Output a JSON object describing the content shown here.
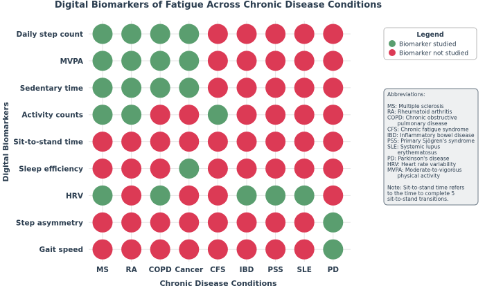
{
  "chart_data": {
    "type": "matrix",
    "title": "Digital Biomarkers of Fatigue Across Chronic Disease Conditions",
    "xlabel": "Chronic Disease Conditions",
    "ylabel": "Digital Biomarkers",
    "categories": [
      "MS",
      "RA",
      "COPD",
      "Cancer",
      "CFS",
      "IBD",
      "PSS",
      "SLE",
      "PD"
    ],
    "biomarkers": [
      "Daily step count",
      "MVPA",
      "Sedentary time",
      "Activity counts",
      "Sit-to-stand time",
      "Sleep efficiency",
      "HRV",
      "Step asymmetry",
      "Gait speed"
    ],
    "values": [
      [
        1,
        1,
        1,
        1,
        0,
        0,
        0,
        0,
        0
      ],
      [
        1,
        1,
        1,
        1,
        0,
        0,
        0,
        0,
        0
      ],
      [
        1,
        1,
        1,
        1,
        0,
        0,
        0,
        0,
        0
      ],
      [
        1,
        1,
        0,
        0,
        1,
        0,
        0,
        0,
        0
      ],
      [
        0,
        0,
        0,
        0,
        0,
        0,
        0,
        0,
        0
      ],
      [
        0,
        0,
        0,
        1,
        0,
        0,
        0,
        0,
        0
      ],
      [
        1,
        0,
        1,
        0,
        0,
        1,
        1,
        1,
        0
      ],
      [
        0,
        0,
        0,
        0,
        0,
        0,
        0,
        0,
        1
      ],
      [
        0,
        0,
        0,
        0,
        0,
        0,
        0,
        0,
        1
      ]
    ],
    "colors": {
      "studied": "#5a9e6f",
      "not_studied": "#dc3a55"
    },
    "legend": {
      "title": "Legend",
      "items": [
        "Biomarker studied",
        "Biomarker not studied"
      ],
      "position": "top-right"
    },
    "grid": true
  },
  "abbreviations": {
    "lines": [
      "Abbreviations:",
      "",
      "MS: Multiple sclerosis",
      "RA: Rheumatoid arthritis",
      "COPD: Chronic obstructive",
      "      pulmonary disease",
      "CFS: Chronic fatigue syndrome",
      "IBD: Inflammatory bowel disease",
      "PSS: Primary Sjögren's syndrome",
      "SLE: Systemic lupus",
      "      erythematosus",
      "PD: Parkinson's disease",
      "HRV: Heart rate variability",
      "MVPA: Moderate-to-vigorous",
      "      physical activity",
      "",
      "Note: Sit-to-stand time refers",
      "to the time to complete 5",
      "sit-to-stand transitions."
    ]
  }
}
